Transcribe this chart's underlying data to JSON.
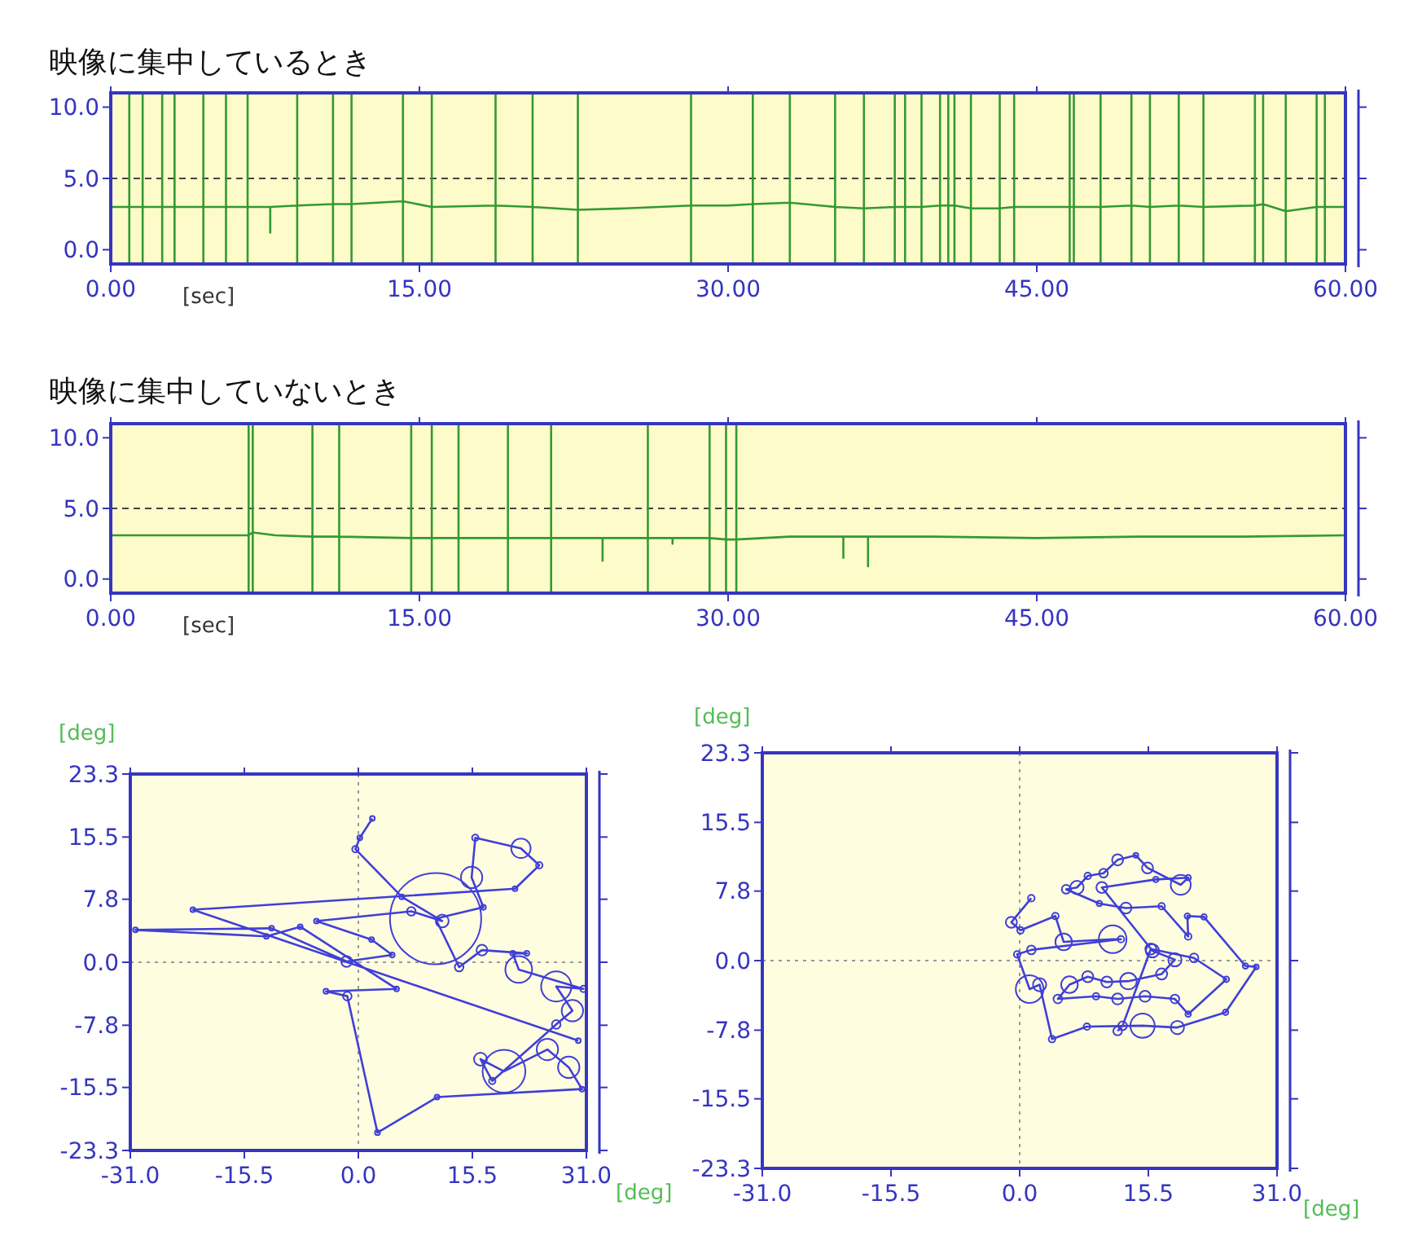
{
  "chart_data": [
    {
      "type": "line",
      "title": "映像に集中しているとき",
      "xlabel": "[sec]",
      "xlim": [
        0,
        60
      ],
      "ylim": [
        -1,
        11
      ],
      "xticks": [
        {
          "value": 0,
          "label": "0.00"
        },
        {
          "value": 15,
          "label": "15.00"
        },
        {
          "value": 30,
          "label": "30.00"
        },
        {
          "value": 45,
          "label": "45.00"
        },
        {
          "value": 60,
          "label": "60.00"
        }
      ],
      "yticks": [
        {
          "value": 0,
          "label": "0.0"
        },
        {
          "value": 5,
          "label": "5.0"
        },
        {
          "value": 10,
          "label": "10.0"
        }
      ],
      "ref_lines": [
        {
          "axis": "y",
          "value": 5,
          "label": null,
          "color": "#444444",
          "line_style": "dashed"
        }
      ],
      "series": [
        {
          "color": "#339933",
          "x": [
            0,
            0.9,
            0.9,
            0.9,
            0.9,
            1.55,
            1.55,
            1.55,
            1.55,
            2.5,
            2.5,
            2.5,
            2.5,
            3.1,
            3.1,
            3.1,
            3.1,
            4.5,
            4.5,
            4.5,
            4.5,
            5.6,
            5.6,
            5.6,
            5.6,
            6.65,
            6.65,
            6.65,
            6.65,
            7.75,
            7.75,
            7.75,
            7.75,
            9.06,
            9.06,
            9.06,
            9.06,
            10.8,
            10.8,
            10.8,
            10.8,
            11.7,
            11.7,
            11.7,
            11.7,
            14.2,
            14.2,
            14.2,
            14.2,
            15.6,
            15.6,
            15.6,
            15.6,
            18.7,
            18.7,
            18.7,
            18.7,
            20.5,
            20.5,
            20.5,
            20.5,
            22.7,
            22.7,
            22.7,
            22.7,
            25,
            28.2,
            28.2,
            28.2,
            28.2,
            30,
            31.2,
            31.2,
            31.2,
            31.2,
            33,
            33,
            33,
            33,
            35.2,
            35.2,
            35.2,
            35.2,
            36.6,
            36.6,
            36.6,
            36.6,
            38.1,
            38.1,
            38.1,
            38.1,
            38.6,
            38.6,
            38.6,
            38.6,
            39.4,
            39.4,
            39.4,
            39.4,
            40.3,
            40.3,
            40.3,
            40.3,
            40.7,
            40.7,
            40.7,
            40.7,
            41,
            41,
            41,
            41,
            41.8,
            41.8,
            41.8,
            41.8,
            43.2,
            43.2,
            43.2,
            43.2,
            43.9,
            43.9,
            43.9,
            43.9,
            46.6,
            46.6,
            46.6,
            46.6,
            46.8,
            46.8,
            46.8,
            46.8,
            48.1,
            48.1,
            48.1,
            48.1,
            49.6,
            49.6,
            49.6,
            49.6,
            50.5,
            50.5,
            50.5,
            50.5,
            51.9,
            51.9,
            51.9,
            51.9,
            53.1,
            53.1,
            53.1,
            53.1,
            55.6,
            55.6,
            55.6,
            55.6,
            56,
            56,
            56,
            56,
            57.1,
            57.1,
            57.1,
            57.1,
            58.6,
            58.6,
            58.6,
            58.6,
            59,
            59,
            59,
            59,
            60
          ],
          "values": [
            3.0,
            3.0,
            10.9,
            -0.9,
            3.0,
            3.0,
            10.9,
            -0.9,
            3.0,
            3.0,
            10.9,
            -0.9,
            3.0,
            3.0,
            10.9,
            -0.9,
            3.0,
            3.0,
            10.9,
            -0.9,
            3.0,
            3.0,
            10.9,
            -0.9,
            3.0,
            3.0,
            10.9,
            -0.9,
            3.0,
            3.0,
            3.0,
            1.2,
            3.0,
            3.1,
            10.9,
            -0.9,
            3.1,
            3.2,
            10.9,
            -0.9,
            3.2,
            3.2,
            10.9,
            -0.9,
            3.2,
            3.4,
            10.9,
            -0.9,
            3.4,
            3.0,
            10.9,
            -0.9,
            3.0,
            3.1,
            10.9,
            -0.9,
            3.1,
            3.0,
            10.9,
            -0.9,
            3.0,
            2.8,
            10.9,
            -0.9,
            2.8,
            2.9,
            3.1,
            10.9,
            -0.9,
            3.1,
            3.1,
            3.2,
            10.9,
            -0.9,
            3.2,
            3.3,
            10.9,
            -0.9,
            3.3,
            3.0,
            10.9,
            -0.9,
            3.0,
            2.9,
            10.9,
            -0.9,
            2.9,
            3.0,
            10.9,
            -0.9,
            3.0,
            3.0,
            10.9,
            -0.9,
            3.0,
            3.0,
            10.9,
            -0.9,
            3.0,
            3.1,
            10.9,
            -0.9,
            3.1,
            3.1,
            10.9,
            -0.9,
            3.1,
            3.1,
            10.9,
            -0.9,
            3.1,
            2.9,
            10.9,
            -0.9,
            2.9,
            2.9,
            10.9,
            -0.9,
            2.9,
            3.0,
            10.9,
            -0.9,
            3.0,
            3.0,
            10.9,
            -0.9,
            3.0,
            3.0,
            10.9,
            -0.9,
            3.0,
            3.0,
            10.9,
            -0.9,
            3.0,
            3.1,
            10.9,
            -0.9,
            3.1,
            3.0,
            10.9,
            -0.9,
            3.0,
            3.1,
            10.9,
            -0.9,
            3.1,
            3.0,
            10.9,
            -0.9,
            3.0,
            3.1,
            10.9,
            -0.9,
            3.1,
            3.2,
            10.9,
            -0.9,
            3.2,
            2.7,
            10.9,
            -0.9,
            2.7,
            3.0,
            10.9,
            -0.9,
            3.0,
            3.0,
            10.9,
            -0.9,
            3.0,
            3.0
          ]
        }
      ]
    },
    {
      "type": "line",
      "title": "映像に集中していないとき",
      "xlabel": "[sec]",
      "xlim": [
        0,
        60
      ],
      "ylim": [
        -1,
        11
      ],
      "xticks": [
        {
          "value": 0,
          "label": "0.00"
        },
        {
          "value": 15,
          "label": "15.00"
        },
        {
          "value": 30,
          "label": "30.00"
        },
        {
          "value": 45,
          "label": "45.00"
        },
        {
          "value": 60,
          "label": "60.00"
        }
      ],
      "yticks": [
        {
          "value": 0,
          "label": "0.0"
        },
        {
          "value": 5,
          "label": "5.0"
        },
        {
          "value": 10,
          "label": "10.0"
        }
      ],
      "ref_lines": [
        {
          "axis": "y",
          "value": 5,
          "label": null,
          "color": "#444444",
          "line_style": "dashed"
        }
      ],
      "series": [
        {
          "color": "#339933",
          "x": [
            0,
            3,
            6.7,
            6.7,
            6.7,
            6.7,
            6.9,
            6.9,
            6.9,
            6.9,
            8,
            9.8,
            9.8,
            9.8,
            9.8,
            11.1,
            11.1,
            11.1,
            11.1,
            14.6,
            14.6,
            14.6,
            14.6,
            15.6,
            15.6,
            15.6,
            15.6,
            16.9,
            16.9,
            16.9,
            16.9,
            19.3,
            19.3,
            19.3,
            19.3,
            21.4,
            21.4,
            21.4,
            21.4,
            23.9,
            23.9,
            23.9,
            23.9,
            26.1,
            26.1,
            26.1,
            26.1,
            27.3,
            27.3,
            27.3,
            27.3,
            29.1,
            29.1,
            29.1,
            29.1,
            29.9,
            29.9,
            29.9,
            29.9,
            30.4,
            30.4,
            30.4,
            30.4,
            33,
            35.6,
            35.6,
            35.6,
            35.6,
            36.8,
            36.8,
            36.8,
            36.8,
            40,
            45,
            50,
            55,
            60
          ],
          "values": [
            3.1,
            3.1,
            3.1,
            10.9,
            -0.9,
            3.1,
            3.3,
            10.9,
            -0.9,
            3.3,
            3.1,
            3.0,
            10.9,
            -0.9,
            3.0,
            3.0,
            10.9,
            -0.9,
            3.0,
            2.9,
            10.9,
            -0.9,
            2.9,
            2.9,
            10.9,
            -0.9,
            2.9,
            2.9,
            10.9,
            -0.9,
            2.9,
            2.9,
            10.9,
            -0.9,
            2.9,
            2.9,
            10.9,
            -0.9,
            2.9,
            2.9,
            2.9,
            1.3,
            2.9,
            2.9,
            10.9,
            -0.9,
            2.9,
            2.9,
            2.9,
            2.5,
            2.9,
            2.9,
            10.9,
            -0.9,
            2.9,
            2.8,
            10.9,
            -0.9,
            2.8,
            2.8,
            10.9,
            -0.9,
            2.8,
            3.0,
            3.0,
            3.0,
            1.5,
            3.0,
            3.0,
            3.0,
            0.9,
            3.0,
            3.0,
            2.9,
            3.0,
            3.0,
            3.1
          ]
        }
      ]
    },
    {
      "type": "bubble",
      "xlabel": "[deg]",
      "ylabel": "[deg]",
      "xlim": [
        -31,
        31
      ],
      "ylim": [
        -23.3,
        23.3
      ],
      "xticks": [
        {
          "value": -31,
          "label": "-31.0"
        },
        {
          "value": -15.5,
          "label": "-15.5"
        },
        {
          "value": 0,
          "label": "0.0"
        },
        {
          "value": 15.5,
          "label": "15.5"
        },
        {
          "value": 31,
          "label": "31.0"
        }
      ],
      "yticks": [
        {
          "value": -23.3,
          "label": "-23.3"
        },
        {
          "value": -15.5,
          "label": "-15.5"
        },
        {
          "value": -7.8,
          "label": "-7.8"
        },
        {
          "value": 0,
          "label": "0.0"
        },
        {
          "value": 7.8,
          "label": "7.8"
        },
        {
          "value": 15.5,
          "label": "15.5"
        },
        {
          "value": 23.3,
          "label": "23.3"
        }
      ],
      "ref_lines": [
        {
          "axis": "x",
          "value": 0,
          "label": null,
          "color": "#999999",
          "line_style": "dotted"
        },
        {
          "axis": "y",
          "value": 0,
          "label": null,
          "color": "#999999",
          "line_style": "dotted"
        }
      ],
      "series": [
        {
          "type": "line",
          "color": "#3f3fd8",
          "x": [
            1.9,
            0.2,
            -0.4,
            5.9,
            11.4,
            7.2,
            -5.7,
            1.8,
            4.6,
            -1.6,
            -11.8,
            -30.3,
            -12.5,
            -7.9,
            5.2,
            -4.4,
            -1.5,
            2.6,
            10.7,
            30.4,
            28.6,
            25.7,
            19.8,
            16.6,
            18.2,
            26.9,
            29.1,
            26.9,
            30.6,
            21.8,
            21.0,
            22.9,
            16.8,
            13.7,
            10.5,
            17.0,
            15.4,
            15.9,
            22.1,
            24.6,
            21.3,
            -22.5,
            29.9
          ],
          "values": [
            17.8,
            15.4,
            14.0,
            8.1,
            5.1,
            6.3,
            5.1,
            2.8,
            0.9,
            0.1,
            4.2,
            4.0,
            3.2,
            4.4,
            -3.3,
            -3.6,
            -4.2,
            -21.1,
            -16.7,
            -15.7,
            -13.0,
            -10.8,
            -13.5,
            -12.0,
            -14.7,
            -7.7,
            -6.0,
            -3.0,
            -3.3,
            -0.9,
            1.1,
            1.1,
            1.5,
            -0.6,
            5.4,
            6.8,
            10.5,
            15.4,
            14.1,
            12.0,
            9.1,
            6.5,
            -9.7
          ]
        },
        {
          "color": "#3f3fd8",
          "x": [
            1.9,
            0.2,
            -0.4,
            5.9,
            11.4,
            7.2,
            -5.7,
            1.8,
            4.6,
            -1.6,
            -11.8,
            -30.3,
            -12.5,
            -7.9,
            5.2,
            -4.4,
            -1.5,
            2.6,
            10.7,
            30.4,
            28.6,
            25.7,
            19.8,
            16.6,
            18.2,
            26.9,
            29.1,
            26.9,
            30.6,
            21.8,
            21.0,
            22.9,
            16.8,
            13.7,
            10.5,
            17.0,
            15.4,
            15.9,
            22.1,
            24.6,
            21.3,
            -22.5,
            29.9
          ],
          "values": [
            17.8,
            15.4,
            14.0,
            8.1,
            5.1,
            6.3,
            5.1,
            2.8,
            0.9,
            0.1,
            4.2,
            4.0,
            3.2,
            4.4,
            -3.3,
            -3.6,
            -4.2,
            -21.1,
            -16.7,
            -15.7,
            -13.0,
            -10.8,
            -13.5,
            -12.0,
            -14.7,
            -7.7,
            -6.0,
            -3.0,
            -3.3,
            -0.9,
            1.1,
            1.1,
            1.5,
            -0.6,
            5.4,
            6.8,
            10.5,
            15.4,
            14.1,
            12.0,
            9.1,
            6.5,
            -9.7
          ],
          "sizes": [
            0.001,
            0.003,
            0.005,
            0.001,
            0.02,
            0.009,
            0.002,
            0.003,
            0.003,
            0.014,
            0.002,
            0.001,
            0.003,
            0.002,
            0.001,
            0.003,
            0.009,
            0.003,
            0.002,
            0.002,
            0.055,
            0.055,
            0.22,
            0.02,
            0.005,
            0.009,
            0.055,
            0.11,
            0.005,
            0.086,
            0.003,
            0.003,
            0.014,
            0.009,
            1,
            0.003,
            0.055,
            0.005,
            0.045,
            0.005,
            0.001,
            0.001,
            0.001
          ]
        }
      ]
    },
    {
      "type": "bubble",
      "xlabel": "[deg]",
      "ylabel": "[deg]",
      "xlim": [
        -31,
        31
      ],
      "ylim": [
        -23.3,
        23.3
      ],
      "xticks": [
        {
          "value": -31,
          "label": "-31.0"
        },
        {
          "value": -15.5,
          "label": "-15.5"
        },
        {
          "value": 0,
          "label": "0.0"
        },
        {
          "value": 15.5,
          "label": "15.5"
        },
        {
          "value": 31,
          "label": "31.0"
        }
      ],
      "yticks": [
        {
          "value": -23.3,
          "label": "-23.3"
        },
        {
          "value": -15.5,
          "label": "-15.5"
        },
        {
          "value": -7.8,
          "label": "-7.8"
        },
        {
          "value": 0,
          "label": "0.0"
        },
        {
          "value": 7.8,
          "label": "7.8"
        },
        {
          "value": 15.5,
          "label": "15.5"
        },
        {
          "value": 23.3,
          "label": "23.3"
        }
      ],
      "ref_lines": [
        {
          "axis": "x",
          "value": 0,
          "label": null,
          "color": "#999999",
          "line_style": "dotted"
        },
        {
          "axis": "y",
          "value": 0,
          "label": null,
          "color": "#999999",
          "line_style": "dotted"
        }
      ],
      "series": [
        {
          "type": "line",
          "color": "#3f3fd8",
          "x": [
            1.4,
            -1.0,
            0.1,
            4.3,
            5.3,
            11.2,
            12.2,
            1.4,
            -0.3,
            1.2,
            2.4,
            3.9,
            8.1,
            14.8,
            19.0,
            24.8,
            28.5,
            27.2,
            22.2,
            20.2,
            20.3,
            17.1,
            12.8,
            9.6,
            5.6,
            6.9,
            8.2,
            10.1,
            11.8,
            14.0,
            15.4,
            19.4,
            20.3,
            16.4,
            9.9,
            16.0,
            18.7,
            17.1,
            13.1,
            10.5,
            8.2,
            6.0,
            4.6,
            9.2,
            11.8,
            15.1,
            18.7,
            20.3,
            24.9,
            21.0,
            15.8,
            12.4,
            11.8
          ],
          "values": [
            7.0,
            4.3,
            3.4,
            5.0,
            2.1,
            2.4,
            2.4,
            1.2,
            0.7,
            -3.2,
            -2.7,
            -8.8,
            -7.4,
            -7.3,
            -7.5,
            -5.8,
            -0.7,
            -0.6,
            4.9,
            5.0,
            2.7,
            6.1,
            5.9,
            6.4,
            8.0,
            8.2,
            9.5,
            9.8,
            11.3,
            11.8,
            10.4,
            8.5,
            9.3,
            9.1,
            8.2,
            1.1,
            0.1,
            -1.5,
            -2.3,
            -2.4,
            -1.8,
            -2.7,
            -4.3,
            -4.0,
            -4.3,
            -4.0,
            -4.3,
            -6.0,
            -2.1,
            0.3,
            1.3,
            -7.3,
            -7.9
          ]
        },
        {
          "color": "#3f3fd8",
          "x": [
            1.4,
            -1.0,
            0.1,
            4.3,
            5.3,
            11.2,
            12.2,
            1.4,
            -0.3,
            1.2,
            2.4,
            3.9,
            8.1,
            14.8,
            19.0,
            24.8,
            28.5,
            27.2,
            22.2,
            20.2,
            20.3,
            17.1,
            12.8,
            9.6,
            5.6,
            6.9,
            8.2,
            10.1,
            11.8,
            14.0,
            15.4,
            19.4,
            20.3,
            16.4,
            9.9,
            16.0,
            18.7,
            17.1,
            13.1,
            10.5,
            8.2,
            6.0,
            4.6,
            9.2,
            11.8,
            15.1,
            18.7,
            20.3,
            24.9,
            21.0,
            15.8,
            12.4,
            11.8
          ],
          "values": [
            7.0,
            4.3,
            3.4,
            5.0,
            2.1,
            2.4,
            2.4,
            1.2,
            0.7,
            -3.2,
            -2.7,
            -8.8,
            -7.4,
            -7.3,
            -7.5,
            -5.8,
            -0.7,
            -0.6,
            4.9,
            5.0,
            2.7,
            6.1,
            5.9,
            6.4,
            8.0,
            8.2,
            9.5,
            9.8,
            11.3,
            11.8,
            10.4,
            8.5,
            9.3,
            9.1,
            8.2,
            1.1,
            0.1,
            -1.5,
            -2.3,
            -2.4,
            -1.8,
            -2.7,
            -4.3,
            -4.0,
            -4.3,
            -4.0,
            -4.3,
            -6.0,
            -2.1,
            0.3,
            1.3,
            -7.3,
            -7.9
          ],
          "sizes": [
            0.058,
            0.16,
            0.058,
            0.058,
            0.36,
            1,
            0.058,
            0.1,
            0.058,
            1,
            0.23,
            0.058,
            0.058,
            0.77,
            0.23,
            0.04,
            0.026,
            0.04,
            0.04,
            0.04,
            0.058,
            0.058,
            0.16,
            0.04,
            0.1,
            0.23,
            0.058,
            0.1,
            0.16,
            0.026,
            0.16,
            0.52,
            0.04,
            0.04,
            0.16,
            0.23,
            0.23,
            0.16,
            0.36,
            0.16,
            0.16,
            0.36,
            0.1,
            0.058,
            0.16,
            0.16,
            0.1,
            0.04,
            0.04,
            0.1,
            0.16,
            0.1,
            0.1
          ]
        }
      ]
    }
  ]
}
